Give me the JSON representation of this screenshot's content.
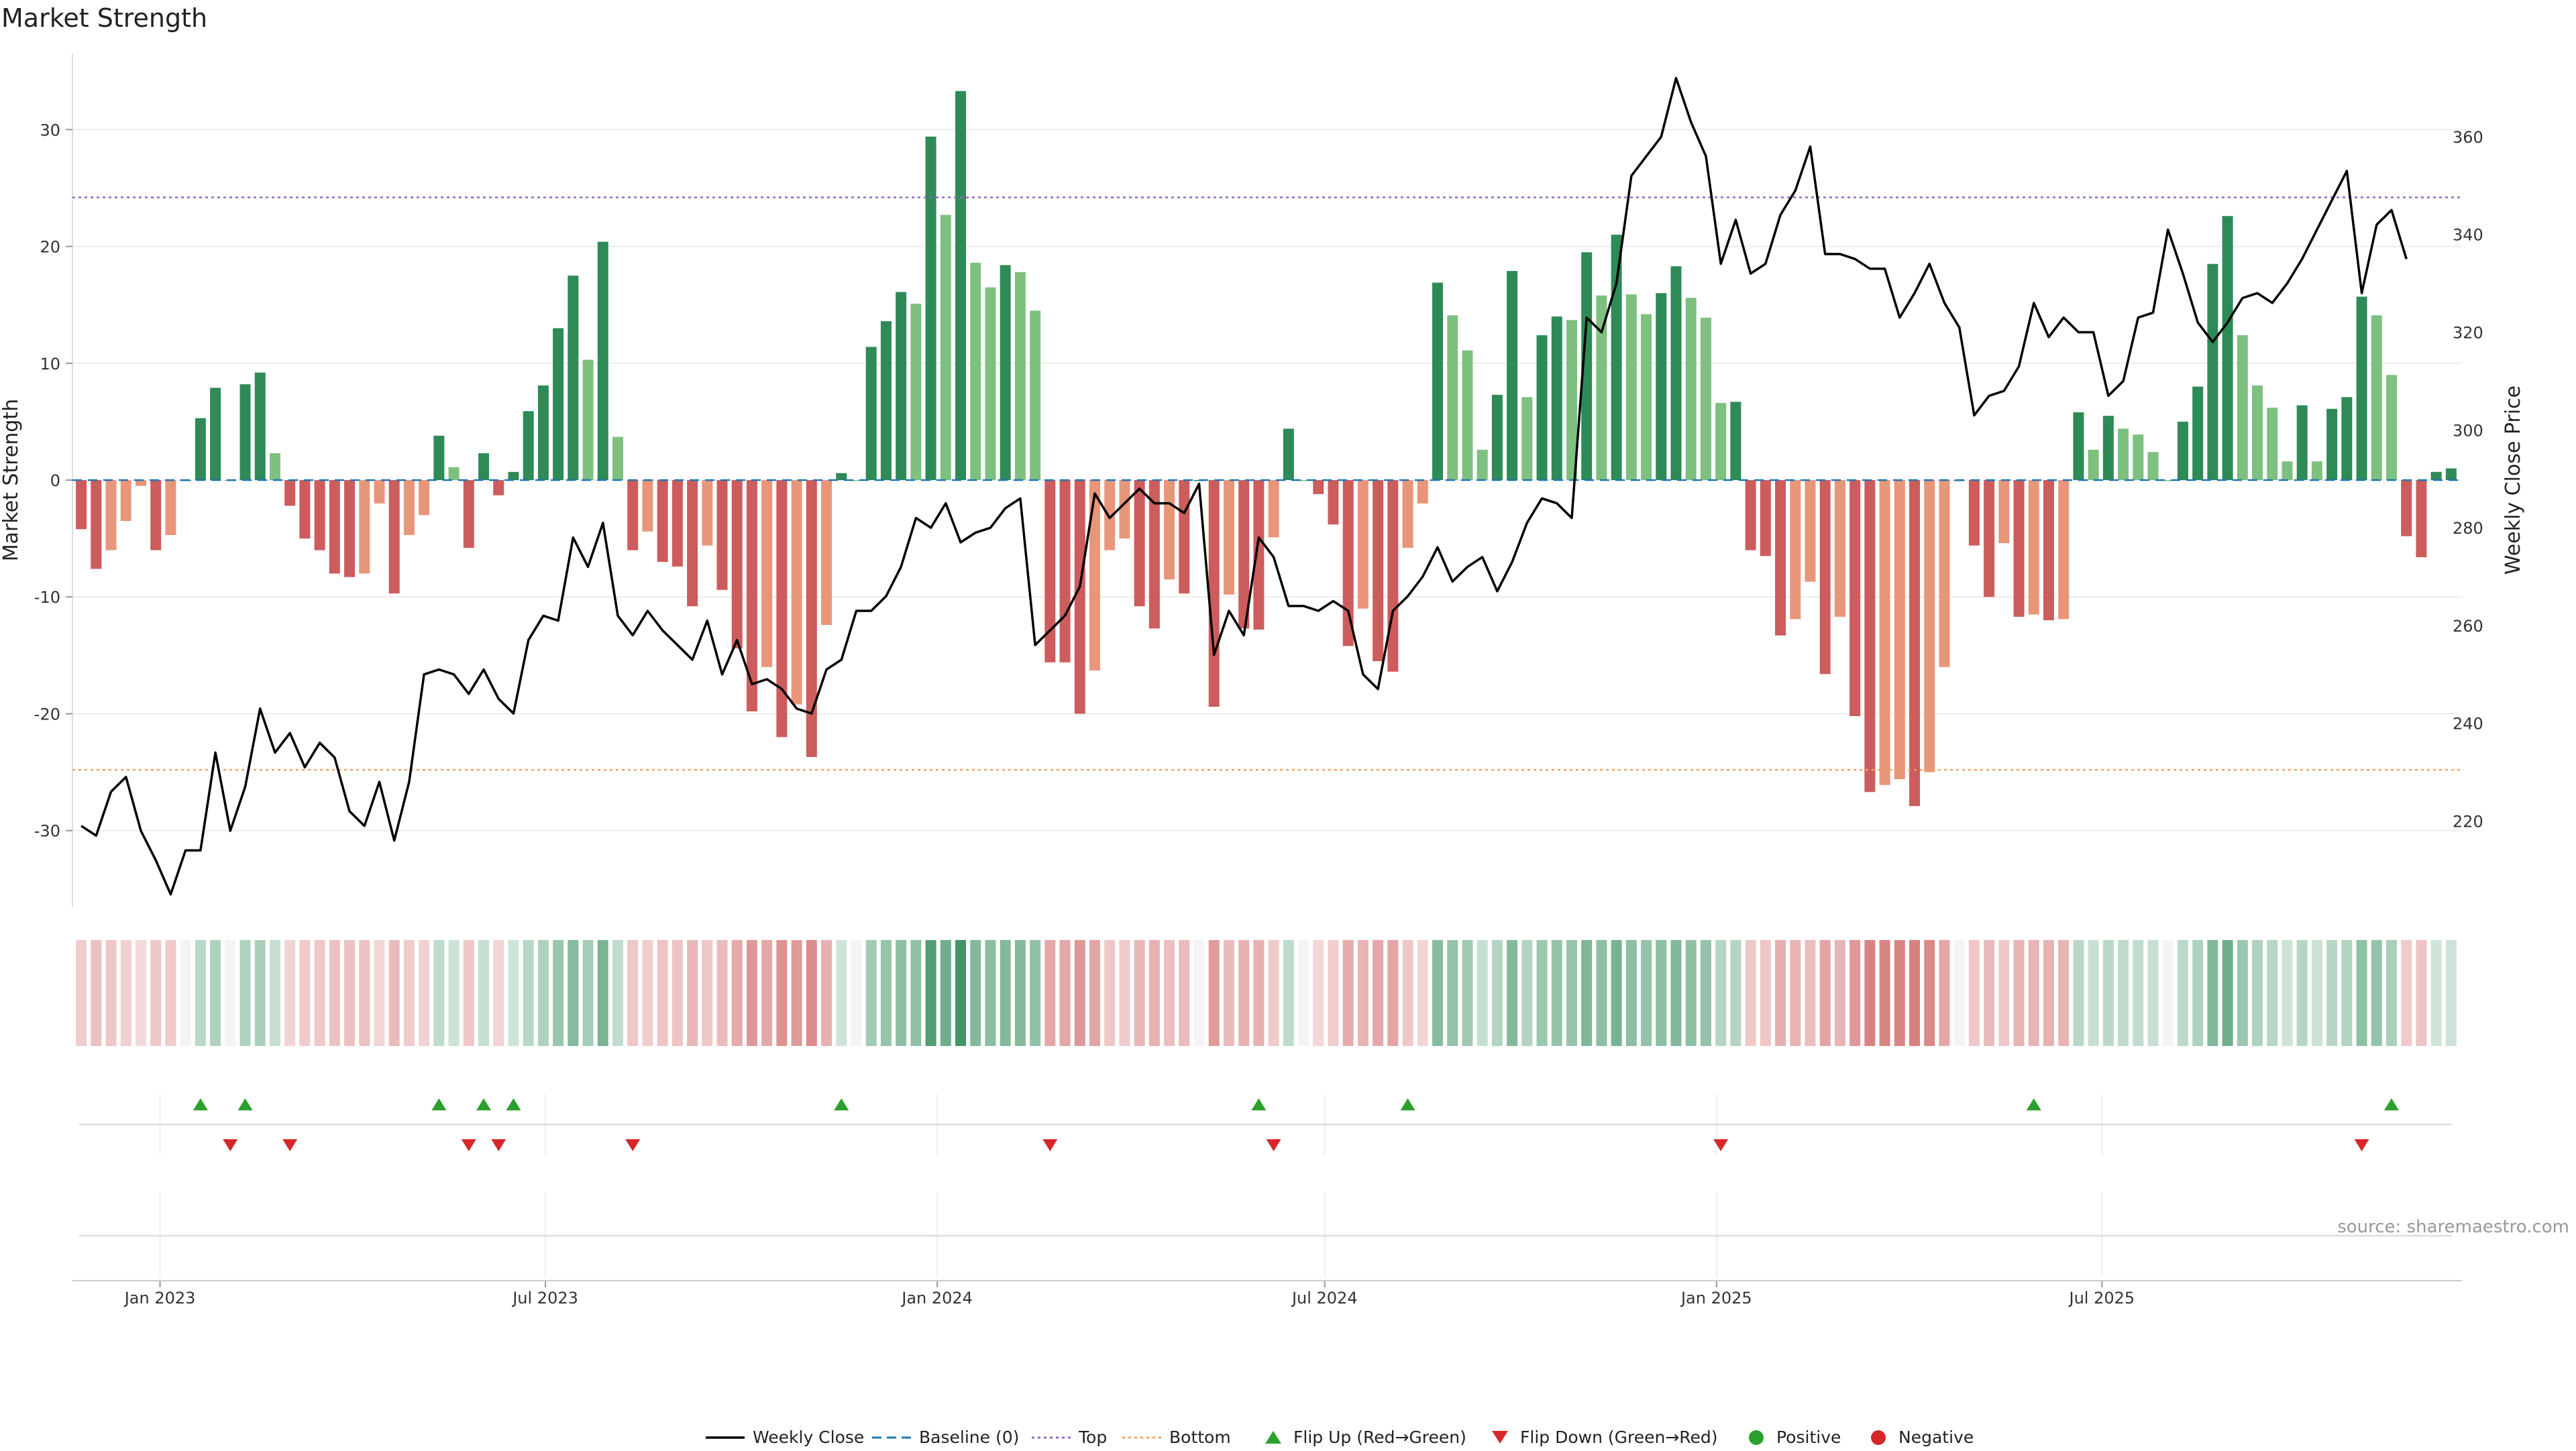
{
  "title": "Market Strength",
  "source": "source: sharemaestro.com",
  "colors": {
    "pos_dark": "#2e8a57",
    "pos_light": "#7ec07f",
    "neg_dark": "#cd5c5c",
    "neg_light": "#e8967a",
    "price_line": "#000000",
    "top_line": "#9467bd",
    "bottom_line": "#f0a060",
    "baseline": "#1f77b4",
    "flip_up": "#2ca02c",
    "flip_down": "#d62728"
  },
  "legend": [
    {
      "label": "Weekly Close",
      "icon": "solid-line"
    },
    {
      "label": "Baseline (0)",
      "icon": "dashed-line"
    },
    {
      "label": "Top",
      "icon": "dotted-line"
    },
    {
      "label": "Bottom",
      "icon": "dotted-line"
    },
    {
      "label": "Flip Up (Red→Green)",
      "icon": "triangle-up"
    },
    {
      "label": "Flip Down (Green→Red)",
      "icon": "triangle-down"
    },
    {
      "label": "Positive",
      "icon": "dot"
    },
    {
      "label": "Negative",
      "icon": "dot"
    }
  ],
  "chart_data": {
    "type": "bar",
    "title": "Market Strength",
    "ylabel": "Market Strength",
    "ylabel_right": "Weekly Close Price",
    "ylim": [
      -36.5,
      36.5
    ],
    "ylim_right": [
      202.5,
      377
    ],
    "yticks_left": [
      -30,
      -20,
      -10,
      0,
      10,
      20,
      30
    ],
    "yticks_right": [
      220,
      240,
      260,
      280,
      300,
      320,
      340,
      360
    ],
    "x_start": "2022-11-25",
    "week_dates": [
      "2022-11-25",
      "2022-12-02",
      "2022-12-09",
      "2022-12-16",
      "2022-12-23",
      "2022-12-30",
      "2023-01-06",
      "2023-01-13",
      "2023-01-20",
      "2023-01-27",
      "2023-02-03",
      "2023-02-10",
      "2023-02-17",
      "2023-02-24",
      "2023-03-03",
      "2023-03-10",
      "2023-03-17",
      "2023-03-24",
      "2023-03-31",
      "2023-04-07",
      "2023-04-14",
      "2023-04-21",
      "2023-04-28",
      "2023-05-05",
      "2023-05-12",
      "2023-05-19",
      "2023-05-26",
      "2023-06-02",
      "2023-06-09",
      "2023-06-16",
      "2023-06-23",
      "2023-06-30",
      "2023-07-07",
      "2023-07-14",
      "2023-07-21",
      "2023-07-28",
      "2023-08-04",
      "2023-08-11",
      "2023-08-18",
      "2023-08-25",
      "2023-09-01",
      "2023-09-08",
      "2023-09-15",
      "2023-09-22",
      "2023-09-29",
      "2023-10-06",
      "2023-10-13",
      "2023-10-20",
      "2023-10-27",
      "2023-11-03",
      "2023-11-10",
      "2023-11-17",
      "2023-11-24",
      "2023-12-01",
      "2023-12-08",
      "2023-12-15",
      "2023-12-22",
      "2023-12-29",
      "2024-01-05",
      "2024-01-12",
      "2024-01-19",
      "2024-01-26",
      "2024-02-02",
      "2024-02-09",
      "2024-02-16",
      "2024-02-23",
      "2024-03-01",
      "2024-03-08",
      "2024-03-15",
      "2024-03-22",
      "2024-03-29",
      "2024-04-05",
      "2024-04-12",
      "2024-04-19",
      "2024-04-26",
      "2024-05-03",
      "2024-05-10",
      "2024-05-17",
      "2024-05-24",
      "2024-05-31",
      "2024-06-07",
      "2024-06-14",
      "2024-06-21",
      "2024-06-28",
      "2024-07-05",
      "2024-07-12",
      "2024-07-19",
      "2024-07-26",
      "2024-08-02",
      "2024-08-09",
      "2024-08-16",
      "2024-08-23",
      "2024-08-30",
      "2024-09-06",
      "2024-09-13",
      "2024-09-20",
      "2024-09-27",
      "2024-10-04",
      "2024-10-11",
      "2024-10-18",
      "2024-10-25",
      "2024-11-01",
      "2024-11-08",
      "2024-11-15",
      "2024-11-22",
      "2024-11-29",
      "2024-12-06",
      "2024-12-13",
      "2024-12-20",
      "2024-12-27",
      "2025-01-03",
      "2025-01-10",
      "2025-01-17",
      "2025-01-24",
      "2025-01-31",
      "2025-02-07",
      "2025-02-14",
      "2025-02-21",
      "2025-02-28",
      "2025-03-07",
      "2025-03-14",
      "2025-03-21",
      "2025-03-28",
      "2025-04-04",
      "2025-04-11",
      "2025-04-18",
      "2025-04-25",
      "2025-05-02",
      "2025-05-09",
      "2025-05-16",
      "2025-05-23",
      "2025-05-30",
      "2025-06-06",
      "2025-06-13",
      "2025-06-20",
      "2025-06-27",
      "2025-07-04",
      "2025-07-11",
      "2025-07-18",
      "2025-07-25",
      "2025-08-01",
      "2025-08-08",
      "2025-08-15",
      "2025-08-22",
      "2025-08-29",
      "2025-09-05",
      "2025-09-12",
      "2025-09-19",
      "2025-09-26",
      "2025-10-03",
      "2025-10-10",
      "2025-10-17"
    ],
    "x_ticks": [
      {
        "label": "Jan 2023",
        "date": "2023-01-01"
      },
      {
        "label": "Jul 2023",
        "date": "2023-07-01"
      },
      {
        "label": "Jan 2024",
        "date": "2024-01-01"
      },
      {
        "label": "Jul 2024",
        "date": "2024-07-01"
      },
      {
        "label": "Jan 2025",
        "date": "2025-01-01"
      },
      {
        "label": "Jul 2025",
        "date": "2025-07-01"
      }
    ],
    "top_threshold": 24.2,
    "bottom_threshold": -24.8,
    "series": [
      {
        "name": "Market Strength",
        "values": [
          -4.2,
          -7.6,
          -6,
          -3.5,
          -0.5,
          -6,
          -4.7,
          0,
          5.3,
          7.9,
          0,
          8.2,
          9.2,
          2.3,
          -2.2,
          -5,
          -6,
          -8,
          -8.3,
          -8,
          -2,
          -9.7,
          -4.7,
          -3,
          3.8,
          1.1,
          -5.8,
          2.3,
          -1.3,
          0.7,
          5.9,
          8.1,
          13,
          17.5,
          10.3,
          20.4,
          3.7,
          -6,
          -4.4,
          -7,
          -7.4,
          -10.8,
          -5.6,
          -9.4,
          -14.4,
          -19.8,
          -16,
          -22,
          -19.2,
          -23.7,
          -12.4,
          0.6,
          0,
          11.4,
          13.6,
          16.1,
          15.1,
          29.4,
          22.7,
          33.3,
          18.6,
          16.5,
          18.4,
          17.8,
          14.5,
          -15.6,
          -15.6,
          -20,
          -16.3,
          -6,
          -5,
          -10.8,
          -12.7,
          -8.5,
          -9.7,
          0,
          -19.4,
          -9.8,
          -12.7,
          -12.8,
          -4.9,
          4.4,
          0,
          -1.2,
          -3.8,
          -14.2,
          -11,
          -15.5,
          -16.4,
          -5.8,
          -2,
          16.9,
          14.1,
          11.1,
          2.6,
          7.3,
          17.9,
          7.1,
          12.4,
          14,
          13.7,
          19.5,
          15.8,
          21,
          15.9,
          14.2,
          16,
          18.3,
          15.6,
          13.9,
          6.6,
          6.7,
          -6,
          -6.5,
          -13.3,
          -11.9,
          -8.7,
          -16.6,
          -11.7,
          -20.2,
          -26.7,
          -26.1,
          -25.6,
          -27.9,
          -25,
          -16,
          0,
          -5.6,
          -10,
          -5.4,
          -11.7,
          -11.5,
          -12,
          -11.9,
          5.8,
          2.6,
          5.5,
          4.4,
          3.9,
          2.4,
          0,
          5,
          8,
          18.5,
          22.6,
          12.4,
          8.1,
          6.2,
          1.6,
          6.4,
          1.6,
          6.1,
          7.1,
          15.7,
          14.1,
          9,
          -4.8,
          -6.6,
          0.7,
          1
        ]
      },
      {
        "name": "Weekly Close",
        "values": [
          219,
          217,
          226,
          229,
          218,
          212,
          205,
          214,
          214,
          234,
          218,
          227,
          243,
          234,
          238,
          231,
          236,
          233,
          222,
          219,
          228,
          216,
          228,
          250,
          251,
          250,
          246,
          251,
          245,
          242,
          257,
          262,
          261,
          278,
          272,
          281,
          262,
          258,
          263,
          259,
          256,
          253,
          261,
          250,
          257,
          248,
          249,
          247,
          243,
          242,
          251,
          253,
          263,
          263,
          266,
          272,
          282,
          280,
          285,
          277,
          279,
          280,
          284,
          286,
          256,
          259,
          262,
          268,
          287,
          282,
          285,
          288,
          285,
          285,
          283,
          289,
          254,
          263,
          258,
          278,
          274,
          264,
          264,
          263,
          265,
          263,
          250,
          247,
          263,
          266,
          270,
          276,
          269,
          272,
          274,
          267,
          273,
          281,
          286,
          285,
          282,
          323,
          320,
          330,
          352,
          356,
          360,
          372,
          363,
          356,
          334,
          343,
          332,
          334,
          344,
          349,
          358,
          336,
          336,
          335,
          333,
          333,
          323,
          328,
          334,
          326,
          321,
          303,
          307,
          308,
          313,
          326,
          319,
          323,
          320,
          320,
          307,
          310,
          323,
          324,
          341,
          332,
          322,
          318,
          322,
          327,
          328,
          326,
          330,
          335,
          341,
          347,
          353,
          328,
          342,
          345,
          335
        ]
      }
    ],
    "flip_up_weeks": [
      8,
      11,
      24,
      27,
      29,
      51,
      79,
      89,
      131,
      155
    ],
    "flip_down_weeks": [
      10,
      14,
      26,
      28,
      37,
      65,
      80,
      110,
      153
    ],
    "strength_strip": "heat strip of Market Strength per week (green = positive, red = negative)"
  }
}
